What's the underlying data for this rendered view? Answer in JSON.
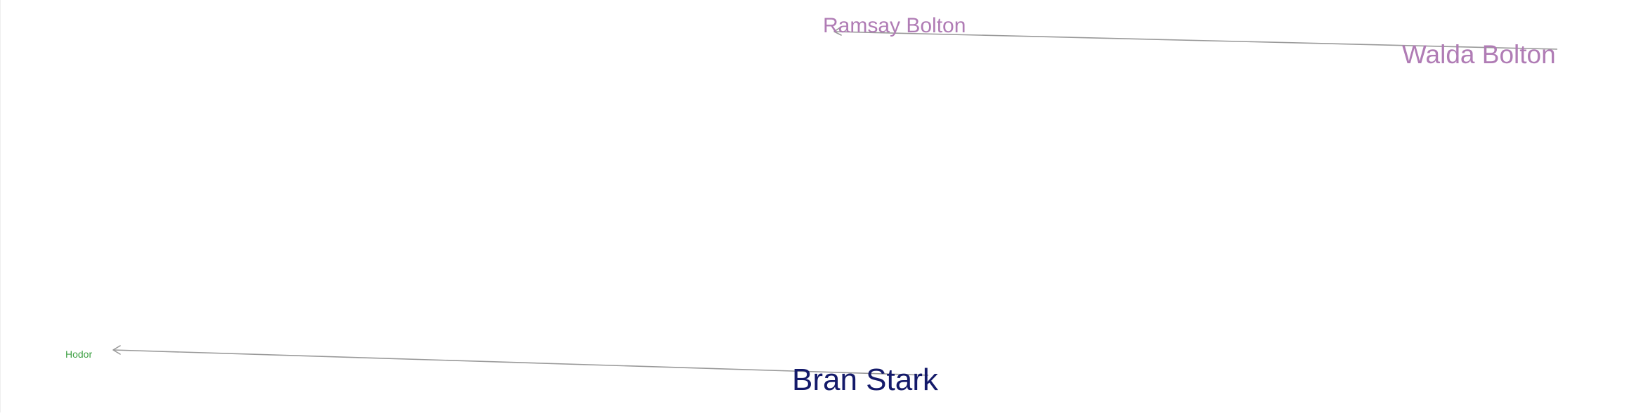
{
  "graph": {
    "nodes": [
      {
        "id": "ramsay-bolton",
        "label": "Ramsay Bolton",
        "color": "#b07cb5"
      },
      {
        "id": "walda-bolton",
        "label": "Walda Bolton",
        "color": "#b07cb5"
      },
      {
        "id": "hodor",
        "label": "Hodor",
        "color": "#3da043"
      },
      {
        "id": "bran-stark",
        "label": "Bran Stark",
        "color": "#141a6a"
      }
    ],
    "edges": [
      {
        "from": "walda-bolton",
        "to": "ramsay-bolton",
        "color": "#999999",
        "directed": true
      },
      {
        "from": "bran-stark",
        "to": "hodor",
        "color": "#999999",
        "directed": true
      }
    ]
  }
}
